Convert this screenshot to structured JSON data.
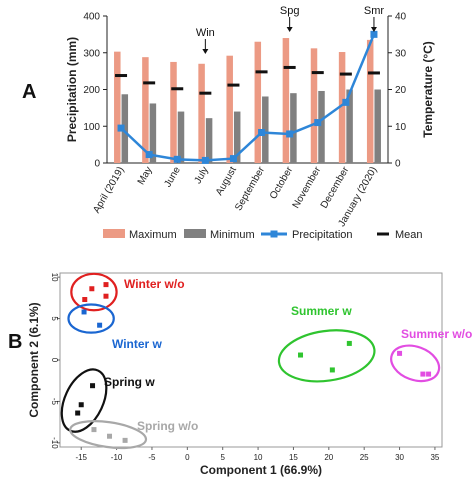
{
  "panels": {
    "a_letter": "A",
    "b_letter": "B"
  },
  "chart_data": [
    {
      "type": "bar",
      "panel": "A",
      "categories": [
        "April (2019)",
        "May",
        "June",
        "July",
        "August",
        "September",
        "October",
        "November",
        "December",
        "January (2020)"
      ],
      "series": [
        {
          "name": "Maximum",
          "kind": "bar",
          "color": "#ec9a84",
          "axis": "left",
          "values": [
            303,
            288,
            275,
            270,
            292,
            330,
            340,
            312,
            302,
            335
          ]
        },
        {
          "name": "Minimum",
          "kind": "bar",
          "color": "#808080",
          "axis": "left",
          "values": [
            187,
            162,
            140,
            122,
            140,
            181,
            190,
            196,
            200,
            200
          ]
        },
        {
          "name": "Precipitation",
          "kind": "line",
          "color": "#2e86d8",
          "axis": "right",
          "values": [
            9.5,
            2.3,
            1.0,
            0.7,
            1.2,
            8.3,
            7.9,
            11.0,
            16.5,
            35.0
          ]
        },
        {
          "name": "Mean",
          "kind": "dash",
          "color": "#111111",
          "axis": "left",
          "values": [
            238,
            218,
            202,
            190,
            212,
            248,
            260,
            246,
            242,
            245
          ]
        }
      ],
      "ylabel": "Precipitation (mm)",
      "y2label": "Temperature (°C)",
      "ylim": [
        0,
        400
      ],
      "y2lim": [
        0,
        40
      ],
      "yticks": [
        0,
        100,
        200,
        300,
        400
      ],
      "y2ticks": [
        0,
        10,
        20,
        30,
        40
      ],
      "annotations": [
        {
          "text": "Win",
          "category": "July"
        },
        {
          "text": "Spg",
          "category": "October"
        },
        {
          "text": "Smr",
          "category": "January (2020)"
        }
      ],
      "legend_position": "bottom"
    },
    {
      "type": "scatter",
      "panel": "B",
      "xlabel": "Component 1 (66.9%)",
      "ylabel": "Component 2 (6.1%)",
      "xlim": [
        -18,
        36
      ],
      "ylim": [
        -10.5,
        10.5
      ],
      "xticks": [
        -15,
        -10,
        -5,
        0,
        5,
        10,
        15,
        20,
        25,
        30,
        35
      ],
      "yticks": [
        -10,
        -5,
        0,
        5,
        10
      ],
      "groups": [
        {
          "name": "Winter w/o",
          "color": "#e02020",
          "points": [
            [
              -13.5,
              8.6
            ],
            [
              -11.5,
              9.1
            ],
            [
              -11.5,
              7.7
            ],
            [
              -14.5,
              7.3
            ]
          ],
          "ellipse": {
            "cx": -13.2,
            "cy": 8.2,
            "rx": 3.2,
            "ry": 2.2
          }
        },
        {
          "name": "Winter w",
          "color": "#1a66d1",
          "points": [
            [
              -14.6,
              5.8
            ],
            [
              -12.4,
              4.2
            ]
          ],
          "ellipse": {
            "cx": -13.6,
            "cy": 5.0,
            "rx": 3.2,
            "ry": 1.7
          }
        },
        {
          "name": "Spring w",
          "color": "#111111",
          "points": [
            [
              -13.4,
              -3.1
            ],
            [
              -15.0,
              -5.4
            ],
            [
              -15.5,
              -6.4
            ]
          ],
          "ellipse": {
            "cx": -14.6,
            "cy": -4.9,
            "rx": 2.7,
            "ry": 4.0
          }
        },
        {
          "name": "Spring w/o",
          "color": "#a8a8a8",
          "points": [
            [
              -13.2,
              -8.4
            ],
            [
              -11.0,
              -9.2
            ],
            [
              -8.8,
              -9.7
            ]
          ],
          "ellipse": {
            "cx": -11.2,
            "cy": -9.0,
            "rx": 5.4,
            "ry": 1.5
          }
        },
        {
          "name": "Summer w",
          "color": "#2fc42f",
          "points": [
            [
              16.0,
              0.6
            ],
            [
              20.5,
              -1.2
            ],
            [
              22.9,
              2.0
            ]
          ],
          "ellipse": {
            "cx": 19.7,
            "cy": 0.5,
            "rx": 6.8,
            "ry": 3.0
          }
        },
        {
          "name": "Summer w/o",
          "color": "#e24de2",
          "points": [
            [
              30.0,
              0.8
            ],
            [
              33.3,
              -1.7
            ],
            [
              34.1,
              -1.7
            ]
          ],
          "ellipse": {
            "cx": 32.2,
            "cy": -0.4,
            "rx": 3.5,
            "ry": 2.0
          }
        }
      ]
    }
  ]
}
